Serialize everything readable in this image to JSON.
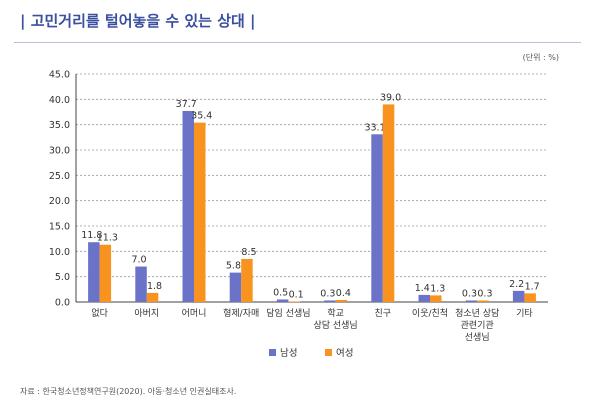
{
  "title": "| 고민거리를 털어놓을 수 있는 상대 |",
  "unit_label": "(단위 : %)",
  "source": "자료 : 한국청소년정책연구원(2020). 아동·청소년 인권실태조사.",
  "colors": {
    "male": "#6b73c9",
    "female": "#f7931e",
    "grid": "#9a9a9a",
    "axis": "#444444",
    "title": "#3a4fa0"
  },
  "chart_data": {
    "type": "bar",
    "categories": [
      [
        "없다"
      ],
      [
        "아버지"
      ],
      [
        "어머니"
      ],
      [
        "형제/자매"
      ],
      [
        "담임 선생님"
      ],
      [
        "학교",
        "상담 선생님"
      ],
      [
        "친구"
      ],
      [
        "이웃/친척"
      ],
      [
        "청소년 상담",
        "관련기관",
        "선생님"
      ],
      [
        "기타"
      ]
    ],
    "series": [
      {
        "name": "남성",
        "color": "#6b73c9",
        "values": [
          11.8,
          7.0,
          37.7,
          5.8,
          0.5,
          0.3,
          33.1,
          1.4,
          0.3,
          2.2
        ],
        "labels": [
          "11.8",
          "7.0",
          "37.7",
          "5.8",
          "0.5",
          "0.3",
          "33.1",
          "1.4",
          "0.3",
          "2.2"
        ]
      },
      {
        "name": "여성",
        "color": "#f7931e",
        "values": [
          11.3,
          1.8,
          35.4,
          8.5,
          0.1,
          0.4,
          39.0,
          1.3,
          0.3,
          1.7
        ],
        "labels": [
          "11.3",
          "1.8",
          "35.4",
          "8.5",
          "0.1",
          "0.4",
          "39.0",
          "1.3",
          "0.3",
          "1.7"
        ]
      }
    ],
    "ylim": [
      0,
      45
    ],
    "yticks": [
      "0.0",
      "5.0",
      "10.0",
      "15.0",
      "20.0",
      "25.0",
      "30.0",
      "35.0",
      "40.0",
      "45.0"
    ],
    "grid": true,
    "legend": "bottom-center"
  }
}
